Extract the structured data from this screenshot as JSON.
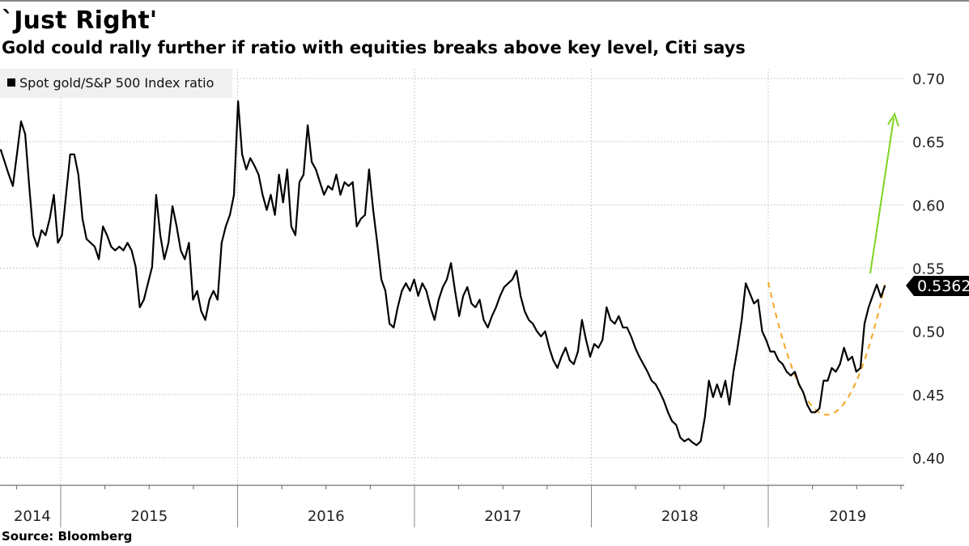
{
  "title": "`Just Right'",
  "subtitle": "Gold could rally further if ratio with equities breaks above key level, Citi says",
  "source": "Source: Bloomberg",
  "colors": {
    "line": "#000000",
    "curve": "#f5a623",
    "arrow": "#7ed321",
    "grid": "#cccccc"
  },
  "chart_data": {
    "type": "line",
    "title": "`Just Right'",
    "legend": {
      "position": "top-left",
      "entries": [
        "Spot gold/S&P 500 Index ratio"
      ]
    },
    "xlabel": "",
    "ylabel": "",
    "x_range": [
      2014.66,
      2019.66
    ],
    "xlim": [
      2014.66,
      2019.77
    ],
    "ylim": [
      0.375,
      0.7
    ],
    "yticks": [
      "0.40",
      "0.45",
      "0.50",
      "0.55",
      "0.60",
      "0.65",
      "0.70"
    ],
    "ytick_values": [
      0.4,
      0.45,
      0.5,
      0.55,
      0.6,
      0.65,
      0.7
    ],
    "xtick_labels": [
      "2014",
      "2015",
      "2016",
      "2017",
      "2018",
      "2019"
    ],
    "year_boundaries": [
      2015,
      2016,
      2017,
      2018,
      2019
    ],
    "grid": true,
    "last_value_label": "0.5362",
    "last_value": 0.5362,
    "series": [
      {
        "name": "Spot gold/S&P 500 Index ratio",
        "values": [
          0.644,
          0.634,
          0.624,
          0.615,
          0.64,
          0.666,
          0.656,
          0.615,
          0.576,
          0.567,
          0.58,
          0.576,
          0.589,
          0.608,
          0.57,
          0.576,
          0.608,
          0.64,
          0.64,
          0.624,
          0.589,
          0.573,
          0.57,
          0.567,
          0.557,
          0.583,
          0.576,
          0.567,
          0.564,
          0.567,
          0.564,
          0.57,
          0.564,
          0.551,
          0.519,
          0.525,
          0.538,
          0.551,
          0.608,
          0.576,
          0.557,
          0.57,
          0.599,
          0.583,
          0.564,
          0.557,
          0.57,
          0.525,
          0.532,
          0.516,
          0.509,
          0.525,
          0.532,
          0.525,
          0.57,
          0.583,
          0.592,
          0.608,
          0.682,
          0.64,
          0.628,
          0.637,
          0.631,
          0.624,
          0.608,
          0.596,
          0.608,
          0.592,
          0.624,
          0.602,
          0.628,
          0.583,
          0.576,
          0.618,
          0.624,
          0.663,
          0.634,
          0.628,
          0.618,
          0.608,
          0.615,
          0.612,
          0.624,
          0.608,
          0.618,
          0.615,
          0.618,
          0.583,
          0.589,
          0.592,
          0.628,
          0.596,
          0.57,
          0.541,
          0.532,
          0.506,
          0.503,
          0.519,
          0.532,
          0.538,
          0.532,
          0.541,
          0.528,
          0.538,
          0.532,
          0.519,
          0.509,
          0.525,
          0.535,
          0.541,
          0.554,
          0.532,
          0.512,
          0.528,
          0.535,
          0.522,
          0.519,
          0.525,
          0.509,
          0.503,
          0.512,
          0.519,
          0.528,
          0.535,
          0.538,
          0.541,
          0.548,
          0.528,
          0.516,
          0.509,
          0.506,
          0.5,
          0.496,
          0.5,
          0.487,
          0.477,
          0.471,
          0.48,
          0.487,
          0.477,
          0.474,
          0.484,
          0.509,
          0.493,
          0.48,
          0.49,
          0.487,
          0.493,
          0.519,
          0.509,
          0.506,
          0.512,
          0.503,
          0.503,
          0.496,
          0.487,
          0.48,
          0.474,
          0.468,
          0.461,
          0.458,
          0.452,
          0.445,
          0.436,
          0.429,
          0.426,
          0.416,
          0.413,
          0.415,
          0.412,
          0.41,
          0.413,
          0.432,
          0.461,
          0.448,
          0.458,
          0.448,
          0.461,
          0.442,
          0.468,
          0.487,
          0.509,
          0.538,
          0.53,
          0.522,
          0.525,
          0.5,
          0.493,
          0.484,
          0.484,
          0.477,
          0.474,
          0.468,
          0.465,
          0.468,
          0.458,
          0.452,
          0.442,
          0.436,
          0.436,
          0.439,
          0.461,
          0.461,
          0.471,
          0.468,
          0.474,
          0.487,
          0.477,
          0.48,
          0.468,
          0.471,
          0.506,
          0.519,
          0.528,
          0.537,
          0.527,
          0.5362
        ]
      }
    ],
    "annotations": [
      {
        "type": "dashed-curve",
        "color": "orange",
        "points": [
          [
            2019.0,
            0.539
          ],
          [
            2019.33,
            0.434
          ],
          [
            2019.66,
            0.537
          ]
        ]
      },
      {
        "type": "arrow",
        "color": "green",
        "from": [
          2019.58,
          0.546
        ],
        "to": [
          2019.72,
          0.674
        ]
      }
    ]
  }
}
